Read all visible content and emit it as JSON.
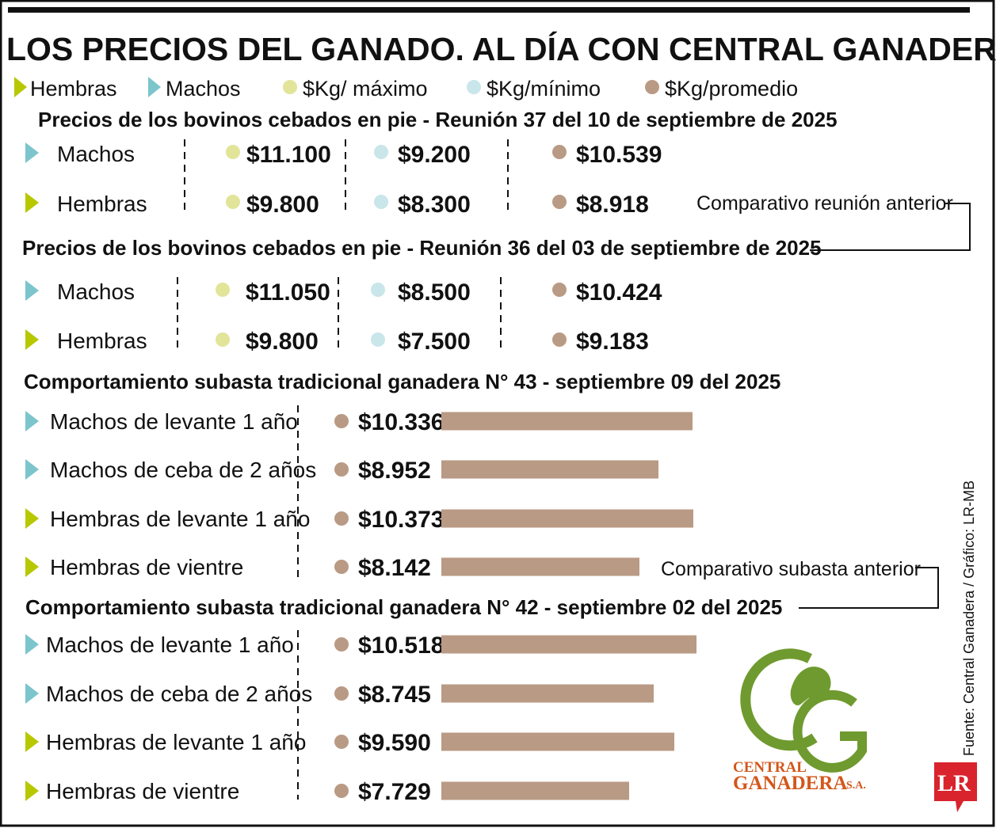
{
  "title": "LOS PRECIOS DEL GANADO. AL DÍA CON CENTRAL GANADERA",
  "legend": [
    {
      "label": "Hembras",
      "marker": "triangle",
      "color": "#b8c800"
    },
    {
      "label": "Machos",
      "marker": "triangle",
      "color": "#7cc5cc"
    },
    {
      "label": "$Kg/ máximo",
      "marker": "dot",
      "color": "#e2e49a"
    },
    {
      "label": "$Kg/mínimo",
      "marker": "dot",
      "color": "#c9e6ea"
    },
    {
      "label": "$Kg/promedio",
      "marker": "dot",
      "color": "#b99a84"
    }
  ],
  "notes": {
    "meeting": "Comparativo reunión anterior",
    "auction": "Comparativo subasta anterior"
  },
  "source": "Fuente: Central Ganadera / Gráfico: LR-MB",
  "logo": {
    "line1": "CENTRAL",
    "line2": "GANADERA",
    "suffix": "S.A.",
    "green": "#6f9a2f",
    "orange": "#d2571c"
  },
  "brand": {
    "mark": "LR",
    "color": "#d9232d"
  },
  "colors": {
    "male": "#7cc5cc",
    "female": "#b8c800",
    "max": "#e2e49a",
    "min": "#c9e6ea",
    "avg": "#b99a84",
    "bar": "#b99a84"
  },
  "chart_data": [
    {
      "type": "table",
      "title": "Precios de los bovinos cebados en pie - Reunión 37 del 10 de septiembre de 2025",
      "columns": [
        "$Kg/ máximo",
        "$Kg/mínimo",
        "$Kg/promedio"
      ],
      "rows": [
        {
          "label": "Machos",
          "group": "male",
          "max": "$11.100",
          "min": "$9.200",
          "avg": "$10.539"
        },
        {
          "label": "Hembras",
          "group": "female",
          "max": "$9.800",
          "min": "$8.300",
          "avg": "$8.918"
        }
      ]
    },
    {
      "type": "table",
      "title": "Precios de los bovinos cebados en pie - Reunión 36 del 03 de septiembre de 2025",
      "columns": [
        "$Kg/ máximo",
        "$Kg/mínimo",
        "$Kg/promedio"
      ],
      "rows": [
        {
          "label": "Machos",
          "group": "male",
          "max": "$11.050",
          "min": "$8.500",
          "avg": "$10.424"
        },
        {
          "label": "Hembras",
          "group": "female",
          "max": "$9.800",
          "min": "$7.500",
          "avg": "$9.183"
        }
      ]
    },
    {
      "type": "bar",
      "orientation": "horizontal",
      "title": "Comportamiento subasta tradicional ganadera N° 43 - septiembre 09 del 2025",
      "categories": [
        "Machos de levante 1 año",
        "Machos de ceba de 2 años",
        "Hembras de levante 1 año",
        "Hembras de vientre"
      ],
      "groups": [
        "male",
        "male",
        "female",
        "female"
      ],
      "values": [
        10336,
        8952,
        10373,
        8142
      ],
      "labels": [
        "$10.336",
        "$8.952",
        "$10.373",
        "$8.142"
      ]
    },
    {
      "type": "bar",
      "orientation": "horizontal",
      "title": "Comportamiento subasta tradicional ganadera N° 42 - septiembre 02 del 2025",
      "categories": [
        "Machos de levante 1 año",
        "Machos de ceba de 2 años",
        "Hembras de levante 1 año",
        "Hembras de vientre"
      ],
      "groups": [
        "male",
        "male",
        "female",
        "female"
      ],
      "values": [
        10518,
        8745,
        9590,
        7729
      ],
      "labels": [
        "$10.518",
        "$8.745",
        "$9.590",
        "$7.729"
      ]
    }
  ]
}
